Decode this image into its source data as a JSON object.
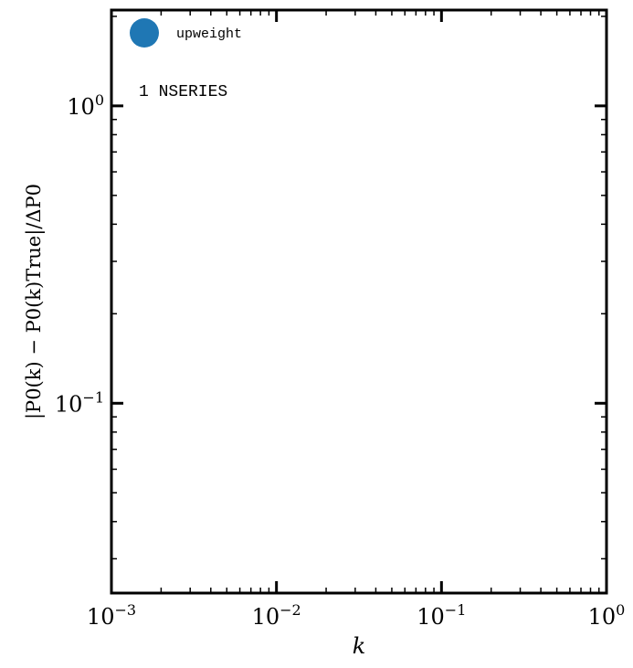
{
  "chart_data": {
    "type": "scatter",
    "xlabel": "k",
    "ylabel": "|P0(k) − P0(k)True|/ΔP0",
    "xscale": "log",
    "yscale": "log",
    "xlim": [
      0.001,
      1
    ],
    "ylim": [
      0.023,
      2.1
    ],
    "grid": false,
    "legend_placement": "top-left",
    "x_ticks": [
      {
        "value": 0.001,
        "base": "10",
        "exp": "−3"
      },
      {
        "value": 0.01,
        "base": "10",
        "exp": "−2"
      },
      {
        "value": 0.1,
        "base": "10",
        "exp": "−1"
      },
      {
        "value": 1,
        "base": "10",
        "exp": "0"
      }
    ],
    "y_ticks": [
      {
        "value": 1,
        "base": "10",
        "exp": "0"
      },
      {
        "value": 0.1,
        "base": "10",
        "exp": "−1"
      }
    ],
    "series": [
      {
        "name": "upweight",
        "color": "#1f77b4",
        "marker": "circle",
        "points": []
      }
    ],
    "annotation": "1 NSERIES"
  }
}
